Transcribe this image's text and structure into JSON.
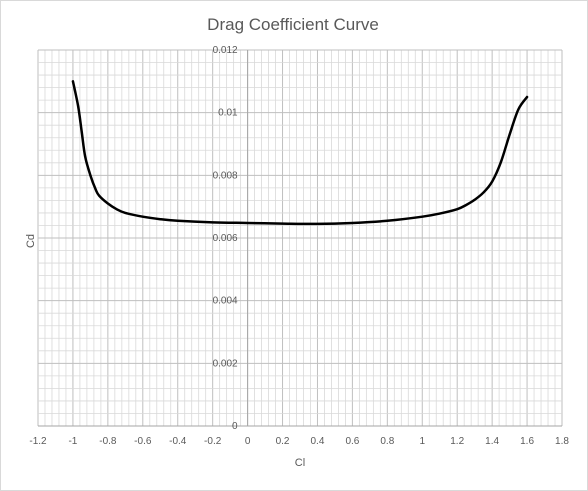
{
  "chart_data": {
    "type": "line",
    "title": "Drag Coefficient Curve",
    "xlabel": "Cl",
    "ylabel": "Cd",
    "xlim": [
      -1.2,
      1.8
    ],
    "ylim": [
      0,
      0.012
    ],
    "x_ticks": [
      "-1.2",
      "-1",
      "-0.8",
      "-0.6",
      "-0.4",
      "-0.2",
      "0",
      "0.2",
      "0.4",
      "0.6",
      "0.8",
      "1",
      "1.2",
      "1.4",
      "1.6",
      "1.8"
    ],
    "y_ticks": [
      "0",
      "0.002",
      "0.004",
      "0.006",
      "0.008",
      "0.01",
      "0.012"
    ],
    "grid": true,
    "legend": "none",
    "series": [
      {
        "color": "#000000",
        "x": [
          -1.0,
          -0.97,
          -0.95,
          -0.93,
          -0.9,
          -0.87,
          -0.85,
          -0.8,
          -0.75,
          -0.7,
          -0.6,
          -0.5,
          -0.4,
          -0.2,
          0.0,
          0.2,
          0.4,
          0.6,
          0.8,
          1.0,
          1.1,
          1.2,
          1.25,
          1.3,
          1.35,
          1.4,
          1.45,
          1.5,
          1.55,
          1.6
        ],
        "y": [
          0.011,
          0.0102,
          0.0094,
          0.0086,
          0.008,
          0.00755,
          0.00735,
          0.0071,
          0.00692,
          0.0068,
          0.00668,
          0.0066,
          0.00655,
          0.0065,
          0.00648,
          0.00646,
          0.00645,
          0.00648,
          0.00655,
          0.00668,
          0.00678,
          0.00692,
          0.00705,
          0.00722,
          0.00745,
          0.0078,
          0.00842,
          0.0093,
          0.0101,
          0.0105
        ]
      }
    ]
  }
}
